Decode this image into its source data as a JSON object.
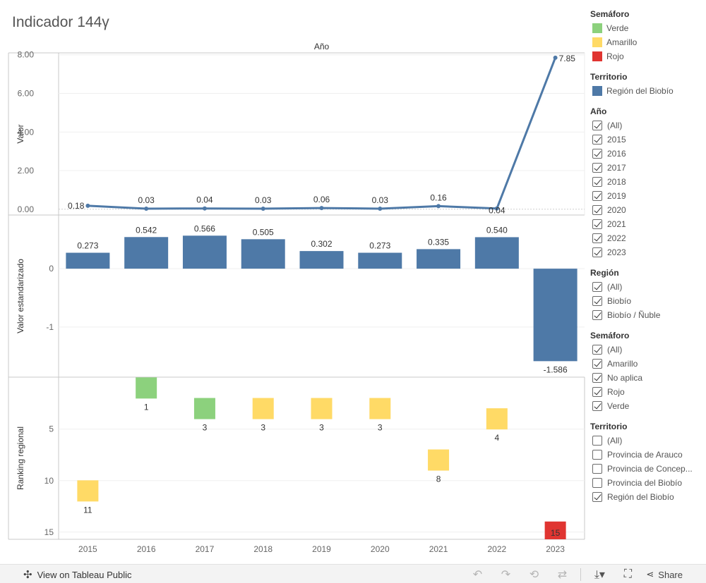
{
  "title": "Indicador 144γ",
  "chart_data": [
    {
      "type": "line",
      "header": "Año",
      "ylabel": "Valor",
      "categories": [
        "2015",
        "2016",
        "2017",
        "2018",
        "2019",
        "2020",
        "2021",
        "2022",
        "2023"
      ],
      "values": [
        0.18,
        0.03,
        0.04,
        0.03,
        0.06,
        0.03,
        0.16,
        0.04,
        7.85
      ],
      "labels": [
        "0.18",
        "0.03",
        "0.04",
        "0.03",
        "0.06",
        "0.03",
        "0.16",
        "0.04",
        "7.85"
      ],
      "yticks": [
        "8.00",
        "6.00",
        "4.00",
        "2.00",
        "0.00"
      ],
      "ytick_values": [
        8,
        6,
        4,
        2,
        0
      ],
      "ylim": [
        -0.3,
        8.1
      ],
      "color": "#4e79a7"
    },
    {
      "type": "bar",
      "ylabel": "Valor estandarizado",
      "categories": [
        "2015",
        "2016",
        "2017",
        "2018",
        "2019",
        "2020",
        "2021",
        "2022",
        "2023"
      ],
      "values": [
        0.273,
        0.542,
        0.566,
        0.505,
        0.302,
        0.273,
        0.335,
        0.54,
        -1.586
      ],
      "labels": [
        "0.273",
        "0.542",
        "0.566",
        "0.505",
        "0.302",
        "0.273",
        "0.335",
        "0.540",
        "-1.586"
      ],
      "yticks": [
        "0",
        "-1"
      ],
      "ytick_values": [
        0,
        -1
      ],
      "ylim": [
        -1.86,
        0.92
      ],
      "color": "#4e79a7"
    },
    {
      "type": "bar",
      "ylabel": "Ranking regional",
      "categories": [
        "2015",
        "2016",
        "2017",
        "2018",
        "2019",
        "2020",
        "2021",
        "2022",
        "2023"
      ],
      "values": [
        11,
        1,
        3,
        3,
        3,
        3,
        8,
        4,
        15
      ],
      "labels": [
        "11",
        "1",
        "3",
        "3",
        "3",
        "3",
        "8",
        "4",
        "15"
      ],
      "semaforo": [
        "Amarillo",
        "Verde",
        "Verde",
        "Amarillo",
        "Amarillo",
        "Amarillo",
        "Amarillo",
        "Amarillo",
        "Rojo"
      ],
      "yticks": [
        "5",
        "10",
        "15"
      ],
      "ytick_values": [
        5,
        10,
        15
      ],
      "ylim": [
        -0.05,
        15.7
      ],
      "reversed": true
    }
  ],
  "colors": {
    "Verde": "#8cd17d",
    "Amarillo": "#ffda66",
    "Rojo": "#e03531",
    "territorio": "#4e79a7"
  },
  "legends": {
    "semaforo_title": "Semáforo",
    "semaforo_items": [
      "Verde",
      "Amarillo",
      "Rojo"
    ],
    "territorio_title": "Territorio",
    "territorio_items": [
      "Región del Biobío"
    ]
  },
  "filters": {
    "anio": {
      "title": "Año",
      "options": [
        {
          "label": "(All)",
          "checked": true
        },
        {
          "label": "2015",
          "checked": true
        },
        {
          "label": "2016",
          "checked": true
        },
        {
          "label": "2017",
          "checked": true
        },
        {
          "label": "2018",
          "checked": true
        },
        {
          "label": "2019",
          "checked": true
        },
        {
          "label": "2020",
          "checked": true
        },
        {
          "label": "2021",
          "checked": true
        },
        {
          "label": "2022",
          "checked": true
        },
        {
          "label": "2023",
          "checked": true
        }
      ]
    },
    "region": {
      "title": "Región",
      "options": [
        {
          "label": "(All)",
          "checked": true
        },
        {
          "label": "Biobío",
          "checked": true
        },
        {
          "label": "Biobío / Ñuble",
          "checked": true
        }
      ]
    },
    "semaforo": {
      "title": "Semáforo",
      "options": [
        {
          "label": "(All)",
          "checked": true
        },
        {
          "label": "Amarillo",
          "checked": true
        },
        {
          "label": "No aplica",
          "checked": true
        },
        {
          "label": "Rojo",
          "checked": true
        },
        {
          "label": "Verde",
          "checked": true
        }
      ]
    },
    "territorio": {
      "title": "Territorio",
      "options": [
        {
          "label": "(All)",
          "checked": false
        },
        {
          "label": "Provincia de Arauco",
          "checked": false
        },
        {
          "label": "Provincia de Concep...",
          "checked": false
        },
        {
          "label": "Provincia del Biobío",
          "checked": false
        },
        {
          "label": "Región del Biobío",
          "checked": true
        }
      ]
    }
  },
  "footer": {
    "view_label": "View on Tableau Public",
    "share_label": "Share"
  }
}
